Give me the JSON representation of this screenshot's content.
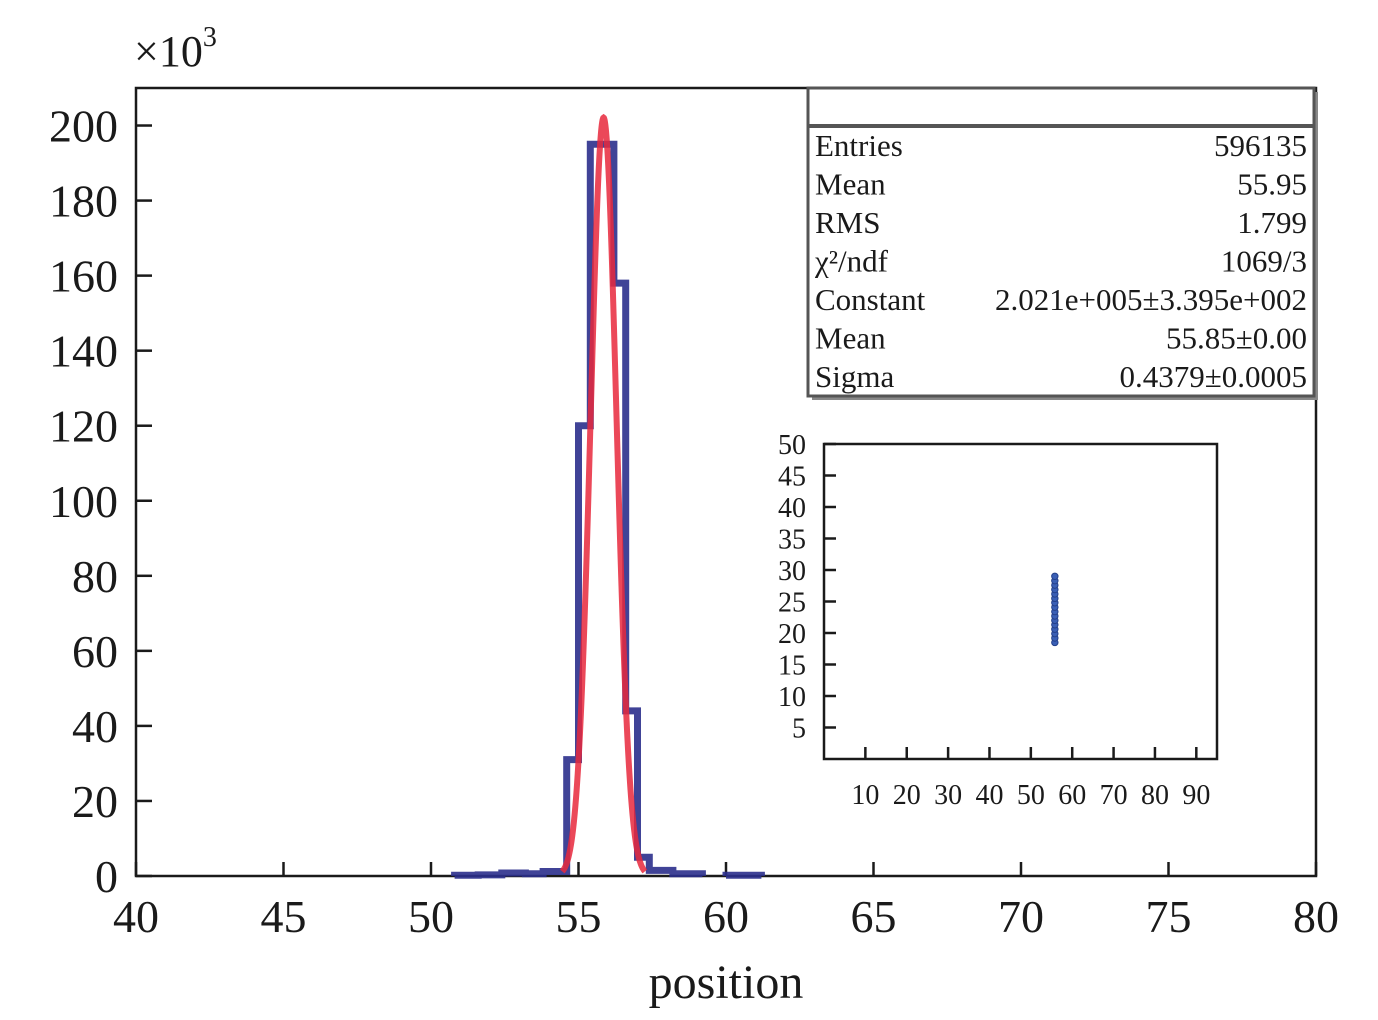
{
  "chart_data": [
    {
      "type": "histogram",
      "title": "",
      "xlabel": "position",
      "ylabel": "",
      "y_multiplier": {
        "base": "×10",
        "exponent": "3"
      },
      "xlim": [
        40,
        80
      ],
      "ylim": [
        0,
        210
      ],
      "x_ticks": [
        40,
        45,
        50,
        55,
        60,
        65,
        70,
        75,
        80
      ],
      "y_ticks": [
        0,
        20,
        40,
        60,
        80,
        100,
        120,
        140,
        160,
        180,
        200
      ],
      "grid": false,
      "colors": {
        "histogram": "#2b2f8c",
        "fit": "#e8283c"
      },
      "bins": [
        {
          "x0": 50.8,
          "x1": 51.6,
          "y": 0.2
        },
        {
          "x0": 51.6,
          "x1": 52.4,
          "y": 0.3
        },
        {
          "x0": 52.4,
          "x1": 53.2,
          "y": 0.8
        },
        {
          "x0": 53.2,
          "x1": 53.8,
          "y": 0.6
        },
        {
          "x0": 53.8,
          "x1": 54.6,
          "y": 1.2
        },
        {
          "x0": 54.6,
          "x1": 55.0,
          "y": 31
        },
        {
          "x0": 55.0,
          "x1": 55.4,
          "y": 120
        },
        {
          "x0": 55.4,
          "x1": 55.8,
          "y": 195
        },
        {
          "x0": 55.8,
          "x1": 56.2,
          "y": 195
        },
        {
          "x0": 56.2,
          "x1": 56.6,
          "y": 158
        },
        {
          "x0": 56.6,
          "x1": 57.0,
          "y": 44
        },
        {
          "x0": 57.0,
          "x1": 57.4,
          "y": 5
        },
        {
          "x0": 57.4,
          "x1": 58.2,
          "y": 1.5
        },
        {
          "x0": 58.2,
          "x1": 59.2,
          "y": 0.6
        },
        {
          "x0": 60.0,
          "x1": 61.2,
          "y": 0.2
        }
      ],
      "fit": {
        "function": "gaus",
        "constant": 202.1,
        "mean": 55.85,
        "sigma": 0.4379
      },
      "stats": {
        "header": "",
        "rows": [
          {
            "label": "Entries",
            "value": "596135"
          },
          {
            "label": "Mean",
            "value": "55.95"
          },
          {
            "label": "RMS",
            "value": "1.799"
          },
          {
            "label": "χ²/ndf",
            "value": "1069/3"
          },
          {
            "label": "Constant",
            "value": "2.021e+005±3.395e+002"
          },
          {
            "label": "Mean",
            "value": "55.85±0.00"
          },
          {
            "label": "Sigma",
            "value": "0.4379±0.0005"
          }
        ]
      }
    },
    {
      "type": "scatter",
      "title": "",
      "xlabel": "",
      "ylabel": "",
      "xlim": [
        0,
        95
      ],
      "ylim": [
        0,
        50
      ],
      "x_ticks": [
        10,
        20,
        30,
        40,
        50,
        60,
        70,
        80,
        90
      ],
      "y_ticks": [
        5,
        10,
        15,
        20,
        25,
        30,
        35,
        40,
        45,
        50
      ],
      "color": "#3a5fb5",
      "points": [
        [
          55.8,
          18.5
        ],
        [
          55.8,
          19.2
        ],
        [
          55.8,
          19.9
        ],
        [
          55.8,
          20.6
        ],
        [
          55.8,
          21.3
        ],
        [
          55.8,
          22.0
        ],
        [
          55.8,
          22.7
        ],
        [
          55.8,
          23.4
        ],
        [
          55.8,
          24.1
        ],
        [
          55.8,
          24.8
        ],
        [
          55.8,
          25.5
        ],
        [
          55.8,
          26.2
        ],
        [
          55.8,
          26.9
        ],
        [
          55.8,
          27.6
        ],
        [
          55.8,
          28.3
        ],
        [
          55.8,
          29.0
        ]
      ]
    }
  ]
}
